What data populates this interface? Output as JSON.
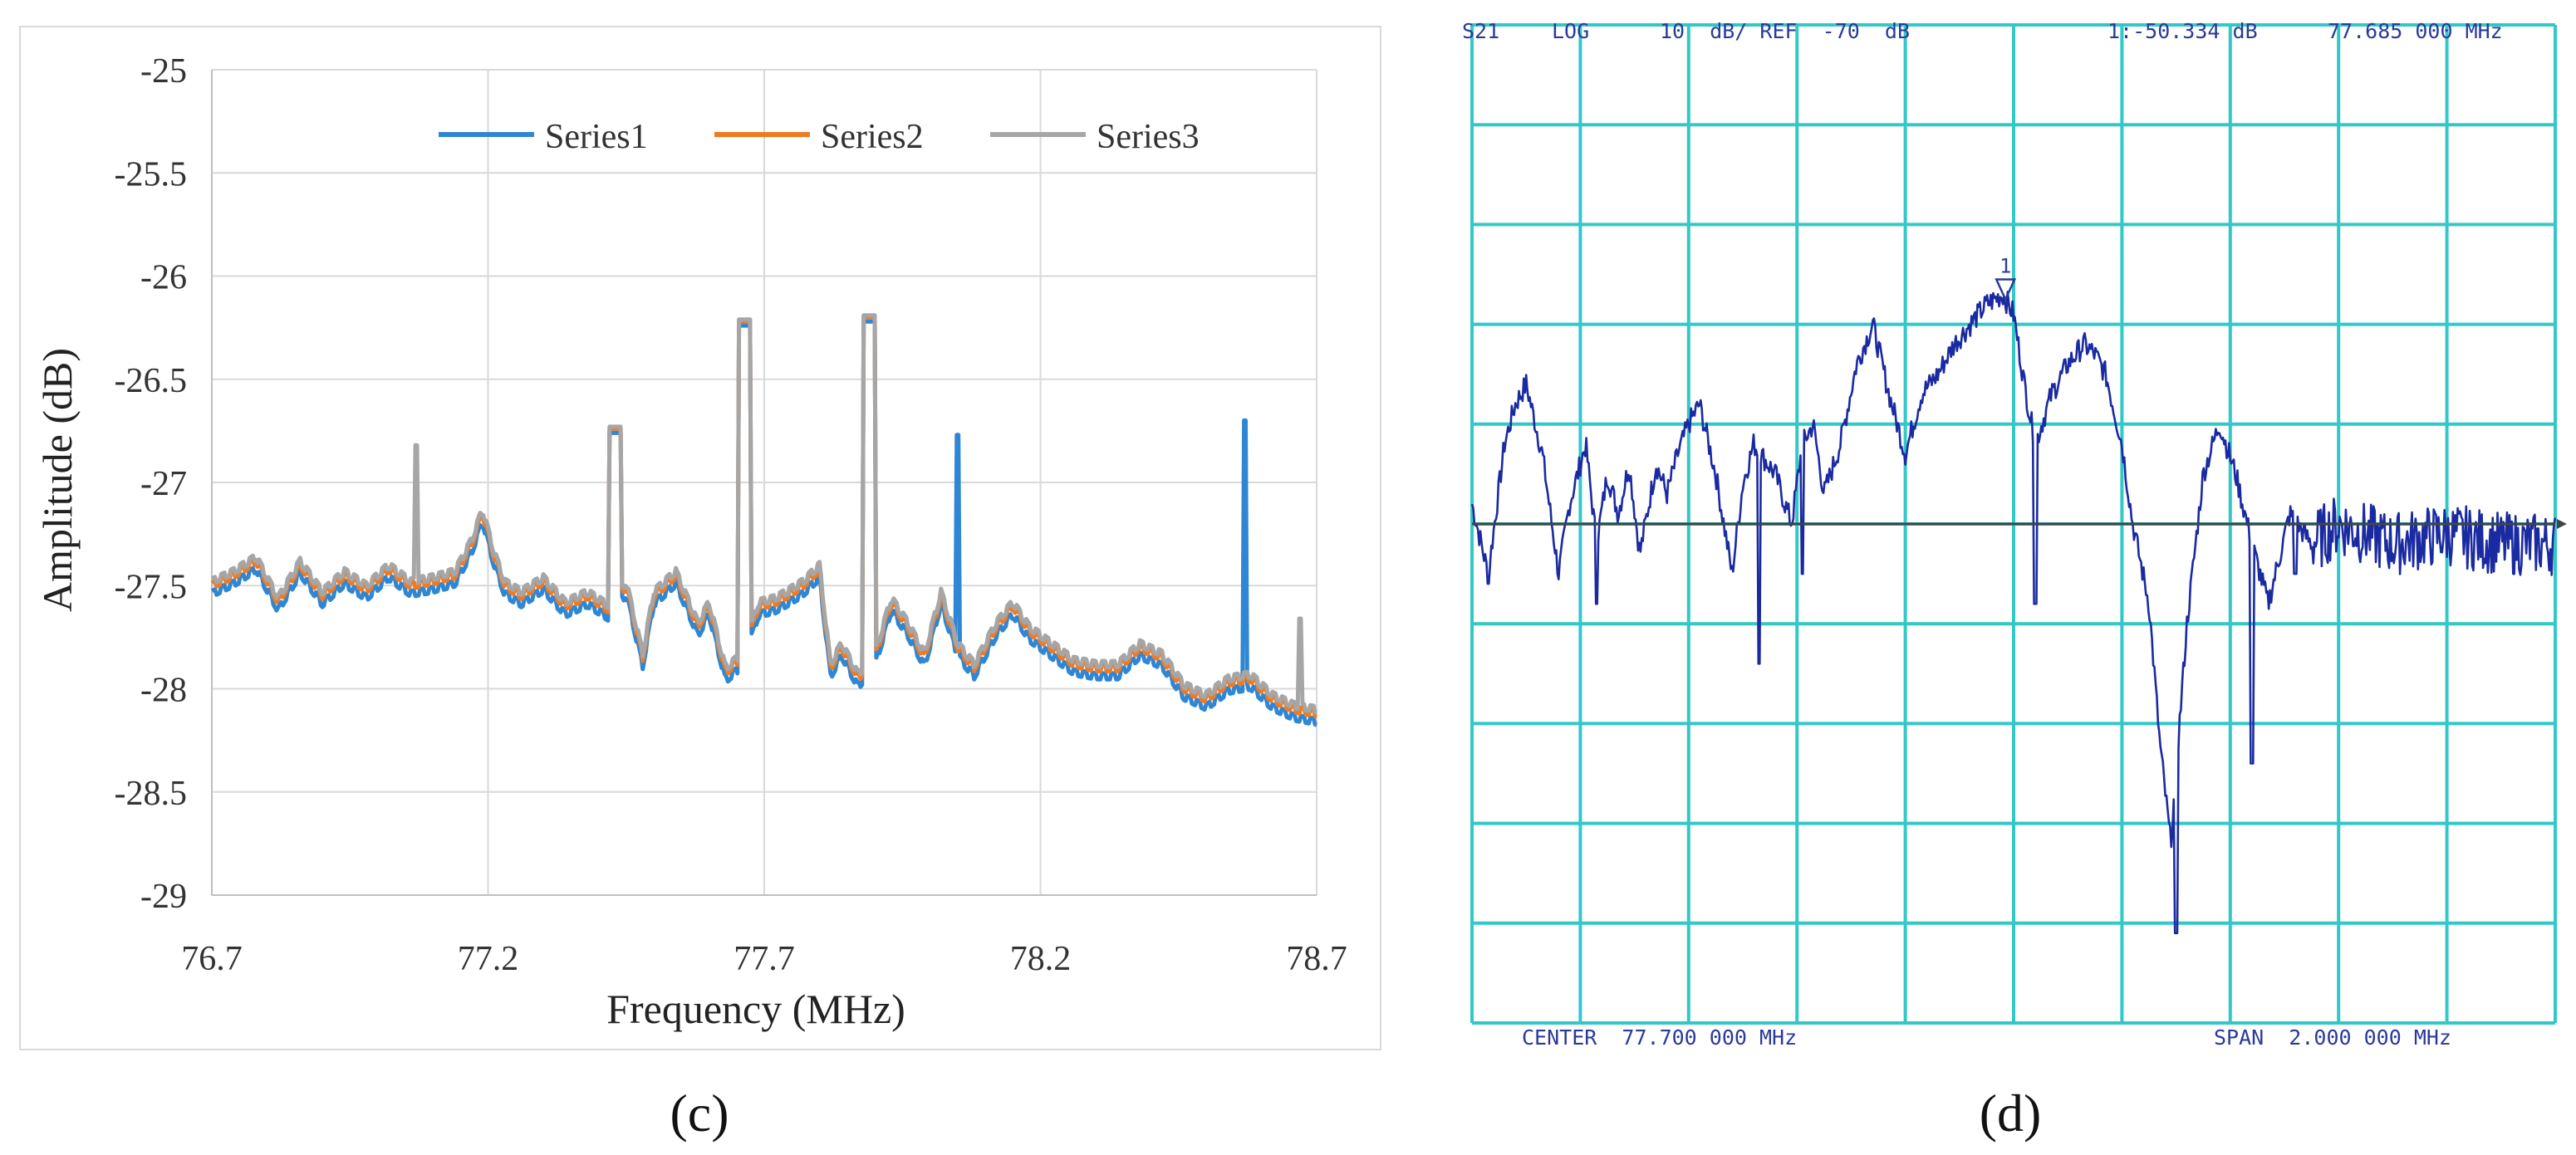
{
  "chart_data": [
    {
      "type": "line",
      "panel_label": "(c)",
      "xlabel": "Frequency (MHz)",
      "ylabel": "Amplitude (dB)",
      "xlim": [
        76.7,
        78.7
      ],
      "ylim": [
        -29,
        -25
      ],
      "xticks": [
        76.7,
        77.2,
        77.7,
        78.2,
        78.7
      ],
      "yticks": [
        -25,
        -25.5,
        -26,
        -26.5,
        -27,
        -27.5,
        -28,
        -28.5,
        -29
      ],
      "legend_position": "top",
      "baseline": [
        [
          76.7,
          -27.5
        ],
        [
          76.74,
          -27.45
        ],
        [
          76.78,
          -27.38
        ],
        [
          76.82,
          -27.58
        ],
        [
          76.86,
          -27.4
        ],
        [
          76.9,
          -27.55
        ],
        [
          76.94,
          -27.45
        ],
        [
          76.98,
          -27.52
        ],
        [
          77.02,
          -27.42
        ],
        [
          77.06,
          -27.5
        ],
        [
          77.1,
          -27.48
        ],
        [
          77.14,
          -27.45
        ],
        [
          77.17,
          -27.3
        ],
        [
          77.19,
          -27.15
        ],
        [
          77.21,
          -27.35
        ],
        [
          77.23,
          -27.5
        ],
        [
          77.26,
          -27.55
        ],
        [
          77.3,
          -27.48
        ],
        [
          77.34,
          -27.6
        ],
        [
          77.38,
          -27.55
        ],
        [
          77.42,
          -27.62
        ],
        [
          77.45,
          -27.5
        ],
        [
          77.48,
          -27.85
        ],
        [
          77.5,
          -27.55
        ],
        [
          77.54,
          -27.45
        ],
        [
          77.58,
          -27.7
        ],
        [
          77.6,
          -27.6
        ],
        [
          77.63,
          -27.92
        ],
        [
          77.66,
          -27.85
        ],
        [
          77.69,
          -27.6
        ],
        [
          77.72,
          -27.58
        ],
        [
          77.74,
          -27.55
        ],
        [
          77.77,
          -27.5
        ],
        [
          77.8,
          -27.42
        ],
        [
          77.82,
          -27.9
        ],
        [
          77.84,
          -27.8
        ],
        [
          77.87,
          -27.95
        ],
        [
          77.9,
          -27.85
        ],
        [
          77.93,
          -27.58
        ],
        [
          77.96,
          -27.7
        ],
        [
          77.99,
          -27.85
        ],
        [
          78.02,
          -27.55
        ],
        [
          78.05,
          -27.8
        ],
        [
          78.08,
          -27.9
        ],
        [
          78.12,
          -27.7
        ],
        [
          78.15,
          -27.6
        ],
        [
          78.18,
          -27.72
        ],
        [
          78.22,
          -27.8
        ],
        [
          78.26,
          -27.88
        ],
        [
          78.3,
          -27.9
        ],
        [
          78.34,
          -27.9
        ],
        [
          78.38,
          -27.8
        ],
        [
          78.42,
          -27.85
        ],
        [
          78.46,
          -28.0
        ],
        [
          78.5,
          -28.05
        ],
        [
          78.54,
          -27.97
        ],
        [
          78.58,
          -27.95
        ],
        [
          78.62,
          -28.05
        ],
        [
          78.66,
          -28.1
        ],
        [
          78.7,
          -28.12
        ]
      ],
      "peaks": [
        {
          "x": 77.07,
          "y": -26.82,
          "series": "Series3"
        },
        {
          "x": 77.43,
          "y": -26.74,
          "series": "all"
        },
        {
          "x": 77.665,
          "y": -26.22,
          "series": "all"
        },
        {
          "x": 77.89,
          "y": -26.2,
          "series": "all"
        },
        {
          "x": 78.05,
          "y": -26.77,
          "series": "Series1"
        },
        {
          "x": 78.57,
          "y": -26.7,
          "series": "Series1"
        },
        {
          "x": 78.67,
          "y": -27.66,
          "series": "Series3"
        }
      ],
      "series": [
        {
          "name": "Series1",
          "color": "#2e86d4",
          "offset": -0.04
        },
        {
          "name": "Series2",
          "color": "#f07a22",
          "offset": 0.0
        },
        {
          "name": "Series3",
          "color": "#a6a6a6",
          "offset": 0.02
        }
      ]
    },
    {
      "type": "line",
      "panel_label": "(d)",
      "header": {
        "param": "S21",
        "format": "LOG",
        "scale": "10  dB/ REF  -70  dB",
        "marker_readout": "1:-50.334 dB",
        "marker_freq": "77.685 000 MHz"
      },
      "footer": {
        "center": "CENTER  77.700 000 MHz",
        "span": "SPAN  2.000 000 MHz"
      },
      "marker_label": "1",
      "grid_divisions": [
        10,
        10
      ],
      "xlim": [
        76.7,
        78.7
      ],
      "ylim": [
        -120,
        -20
      ],
      "reference_level": -70,
      "trace_color": "#1a2aa0",
      "grid_color": "#33c8c8",
      "trace": [
        [
          76.7,
          -68
        ],
        [
          76.73,
          -75
        ],
        [
          76.76,
          -62
        ],
        [
          76.78,
          -58
        ],
        [
          76.8,
          -56
        ],
        [
          76.83,
          -63
        ],
        [
          76.86,
          -75
        ],
        [
          76.88,
          -68
        ],
        [
          76.91,
          -62
        ],
        [
          76.93,
          -72
        ],
        [
          76.95,
          -65
        ],
        [
          76.97,
          -69
        ],
        [
          76.99,
          -64
        ],
        [
          77.01,
          -73
        ],
        [
          77.04,
          -64
        ],
        [
          77.06,
          -67
        ],
        [
          77.08,
          -63
        ],
        [
          77.1,
          -60
        ],
        [
          77.12,
          -58
        ],
        [
          77.15,
          -65
        ],
        [
          77.18,
          -75
        ],
        [
          77.2,
          -66
        ],
        [
          77.22,
          -62
        ],
        [
          77.26,
          -65
        ],
        [
          77.29,
          -70
        ],
        [
          77.31,
          -62
        ],
        [
          77.33,
          -60
        ],
        [
          77.35,
          -67
        ],
        [
          77.38,
          -62
        ],
        [
          77.41,
          -54
        ],
        [
          77.44,
          -50
        ],
        [
          77.47,
          -57
        ],
        [
          77.5,
          -63
        ],
        [
          77.53,
          -57
        ],
        [
          77.56,
          -55
        ],
        [
          77.59,
          -52
        ],
        [
          77.62,
          -50
        ],
        [
          77.65,
          -48
        ],
        [
          77.68,
          -47
        ],
        [
          77.7,
          -49
        ],
        [
          77.72,
          -56
        ],
        [
          77.74,
          -62
        ],
        [
          77.77,
          -57
        ],
        [
          77.8,
          -54
        ],
        [
          77.83,
          -52
        ],
        [
          77.85,
          -53
        ],
        [
          77.87,
          -55
        ],
        [
          77.9,
          -62
        ],
        [
          77.92,
          -70
        ],
        [
          77.95,
          -78
        ],
        [
          77.97,
          -92
        ],
        [
          77.99,
          -102
        ],
        [
          78.02,
          -80
        ],
        [
          78.05,
          -65
        ],
        [
          78.08,
          -60
        ],
        [
          78.11,
          -65
        ],
        [
          78.14,
          -72
        ],
        [
          78.17,
          -78
        ],
        [
          78.21,
          -69
        ],
        [
          78.25,
          -72
        ],
        [
          78.3,
          -70
        ],
        [
          78.4,
          -72
        ],
        [
          78.5,
          -71
        ],
        [
          78.6,
          -72
        ],
        [
          78.7,
          -72
        ]
      ],
      "dips": [
        {
          "x": 76.73,
          "y": -76
        },
        {
          "x": 76.93,
          "y": -78
        },
        {
          "x": 77.23,
          "y": -84
        },
        {
          "x": 77.31,
          "y": -75
        },
        {
          "x": 77.74,
          "y": -78
        },
        {
          "x": 78.0,
          "y": -111
        },
        {
          "x": 78.14,
          "y": -94
        },
        {
          "x": 78.22,
          "y": -75
        }
      ]
    }
  ]
}
